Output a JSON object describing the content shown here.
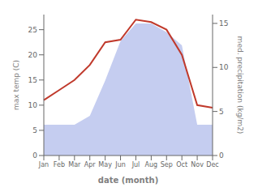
{
  "chart_data": {
    "type": "line",
    "xlabel": "date (month)",
    "ylabel": "max temp (C)",
    "y2label": "med. precipitation (kg/m2)",
    "categories": [
      "Jan",
      "Feb",
      "Mar",
      "Apr",
      "May",
      "Jun",
      "Jul",
      "Aug",
      "Sep",
      "Oct",
      "Nov",
      "Dec"
    ],
    "series": [
      {
        "type": "area",
        "axis": "y2",
        "color": "#c5cdf0",
        "values": [
          3.5,
          3.5,
          3.5,
          4.5,
          8.5,
          13,
          15,
          15,
          14,
          12.5,
          3.5,
          3.5
        ]
      },
      {
        "type": "line",
        "axis": "y",
        "color": "#c0392b",
        "values": [
          11,
          13,
          15,
          18,
          22.5,
          23,
          27,
          26.5,
          25,
          20,
          10,
          9.5
        ]
      }
    ],
    "ylim": [
      0,
      28
    ],
    "yticks": [
      0,
      5,
      10,
      15,
      20,
      25
    ],
    "y2lim": [
      0,
      16
    ],
    "y2ticks": [
      0,
      5,
      10,
      15
    ]
  }
}
